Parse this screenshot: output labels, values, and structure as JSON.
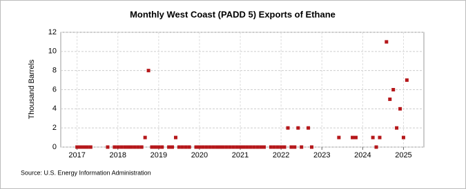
{
  "chart_data": {
    "type": "scatter",
    "title": "Monthly West Coast (PADD 5) Exports of Ethane",
    "y_label": "Thousand Barrels",
    "source": "Source: U.S. Energy Information Administration",
    "series": [
      {
        "name": "West Coast (PADD 5) Exports of Ethane",
        "color": "#b5171a",
        "x": [
          2017,
          2017.083,
          2017.167,
          2017.25,
          2017.333,
          2017.75,
          2017.917,
          2018,
          2018.083,
          2018.167,
          2018.25,
          2018.333,
          2018.417,
          2018.5,
          2018.583,
          2018.667,
          2018.75,
          2018.833,
          2018.917,
          2019,
          2019.083,
          2019.25,
          2019.333,
          2019.417,
          2019.5,
          2019.583,
          2019.667,
          2019.75,
          2019.917,
          2020,
          2020.083,
          2020.167,
          2020.25,
          2020.333,
          2020.417,
          2020.5,
          2020.583,
          2020.667,
          2020.75,
          2020.833,
          2020.917,
          2021,
          2021.083,
          2021.167,
          2021.25,
          2021.333,
          2021.417,
          2021.5,
          2021.583,
          2021.75,
          2021.833,
          2021.917,
          2022,
          2022.083,
          2022.167,
          2022.25,
          2022.333,
          2022.417,
          2022.5,
          2022.667,
          2022.75,
          2023.417,
          2023.75,
          2023.833,
          2024.25,
          2024.333,
          2024.417,
          2024.583,
          2024.667,
          2024.75,
          2024.833,
          2024.917,
          2025,
          2025.083
        ],
        "values": [
          0,
          0,
          0,
          0,
          0,
          0,
          0,
          0,
          0,
          0,
          0,
          0,
          0,
          0,
          0,
          1,
          8,
          0,
          0,
          0,
          0,
          0,
          0,
          1,
          0,
          0,
          0,
          0,
          0,
          0,
          0,
          0,
          0,
          0,
          0,
          0,
          0,
          0,
          0,
          0,
          0,
          0,
          0,
          0,
          0,
          0,
          0,
          0,
          0,
          0,
          0,
          0,
          0,
          0,
          2,
          0,
          0,
          2,
          0,
          2,
          0,
          1,
          1,
          1,
          1,
          0,
          1,
          11,
          5,
          6,
          2,
          4,
          1,
          7
        ]
      }
    ],
    "xlim": [
      2016.6,
      2025.5
    ],
    "xticks": [
      2017,
      2018,
      2019,
      2020,
      2021,
      2022,
      2023,
      2024,
      2025
    ],
    "ylim": [
      0,
      12
    ],
    "yticks": [
      0,
      2,
      4,
      6,
      8,
      10,
      12
    ],
    "grid": true
  }
}
